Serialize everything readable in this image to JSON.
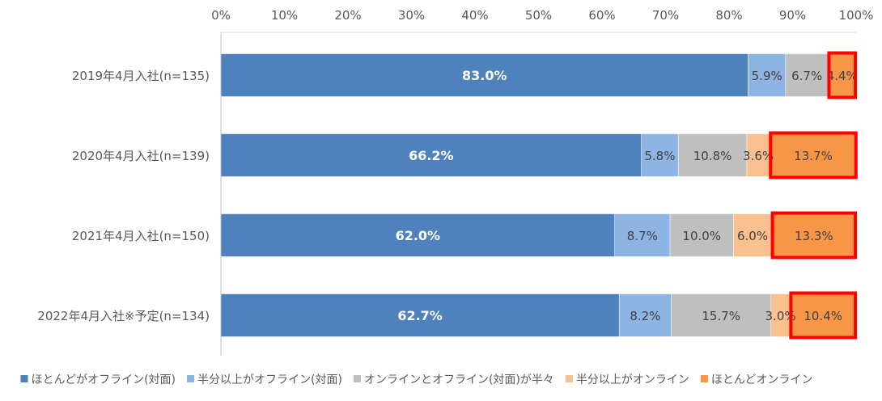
{
  "chart_data": {
    "type": "bar",
    "orientation": "horizontal",
    "stacked": true,
    "categories": [
      "2019年4月入社(n=135)",
      "2020年4月入社(n=139)",
      "2021年4月入社(n=150)",
      "2022年4月入社※予定(n=134)"
    ],
    "series": [
      {
        "name": "ほとんどがオフライン(対面)",
        "color": "#4f81bd",
        "values": [
          83.0,
          66.2,
          62.0,
          62.7
        ],
        "labels": [
          "83.0%",
          "66.2%",
          "62.0%",
          "62.7%"
        ]
      },
      {
        "name": "半分以上がオフライン(対面)",
        "color": "#8eb4e3",
        "values": [
          5.9,
          5.8,
          8.7,
          8.2
        ],
        "labels": [
          "5.9%",
          "5.8%",
          "8.7%",
          "8.2%"
        ]
      },
      {
        "name": "オンラインとオフライン(対面)が半々",
        "color": "#bfbfbf",
        "values": [
          6.7,
          10.8,
          10.0,
          15.7
        ],
        "labels": [
          "6.7%",
          "10.8%",
          "10.0%",
          "15.7%"
        ]
      },
      {
        "name": "半分以上がオンライン",
        "color": "#fac090",
        "values": [
          0.0,
          3.6,
          6.0,
          3.0
        ],
        "labels": [
          "",
          "3.6%",
          "6.0%",
          "3.0%"
        ]
      },
      {
        "name": "ほとんどオンライン",
        "color": "#f79646",
        "values": [
          4.4,
          13.7,
          13.3,
          10.4
        ],
        "labels": [
          "4.4%",
          "13.7%",
          "13.3%",
          "10.4%"
        ]
      }
    ],
    "xlim": [
      0,
      100
    ],
    "x_ticks": [
      "0%",
      "10%",
      "20%",
      "30%",
      "40%",
      "50%",
      "60%",
      "70%",
      "80%",
      "90%",
      "100%"
    ],
    "x_axis_position": "top",
    "grid": false,
    "legend_position": "bottom",
    "highlight": {
      "series": "ほとんどオンライン",
      "outline_color": "#ff0000"
    }
  }
}
